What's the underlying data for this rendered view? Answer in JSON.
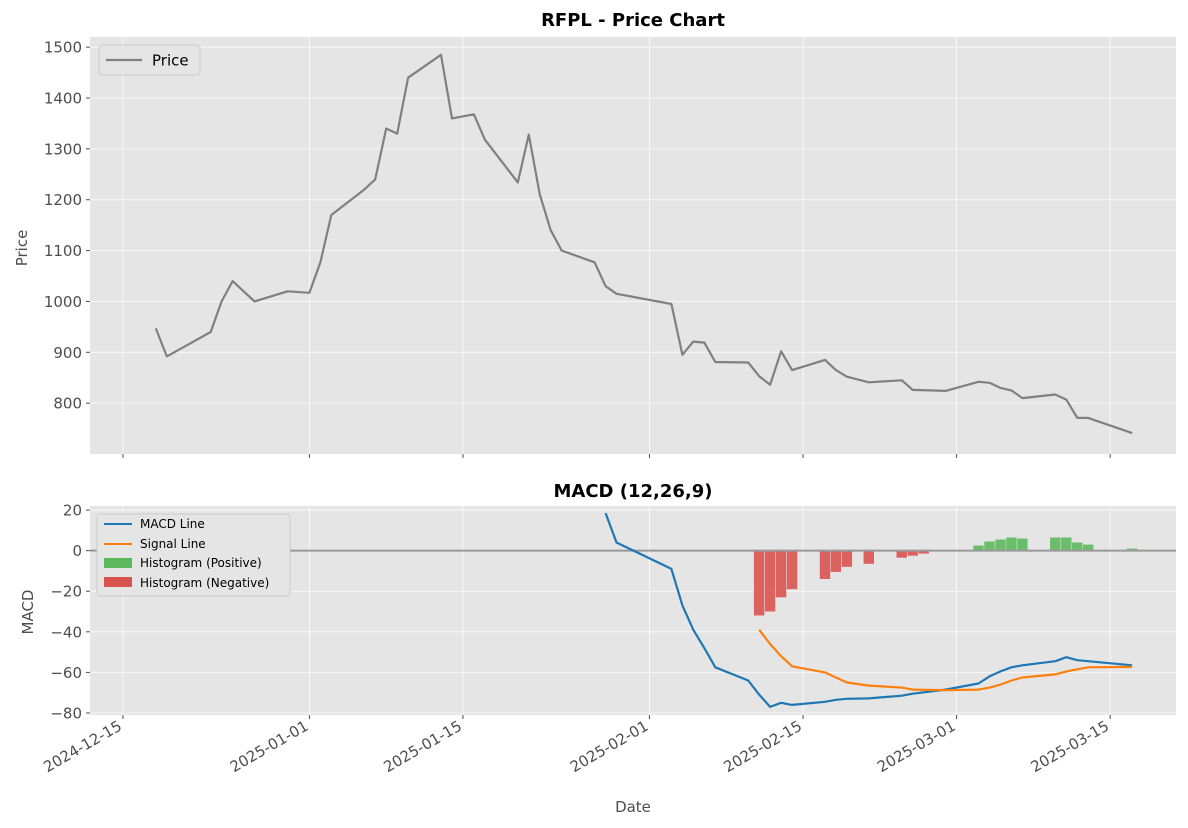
{
  "chart_data": [
    {
      "type": "line",
      "title": "RFPL - Price Chart",
      "xlabel": "",
      "ylabel": "Price",
      "xlim": [
        "2024-12-12",
        "2025-03-21"
      ],
      "ylim": [
        700,
        1520
      ],
      "yticks": [
        800,
        900,
        1000,
        1100,
        1200,
        1300,
        1400,
        1500
      ],
      "grid": true,
      "legend_position": "top-left",
      "series": [
        {
          "name": "Price",
          "color": "#808080",
          "points": [
            [
              "2024-12-18",
              947
            ],
            [
              "2024-12-19",
              892
            ],
            [
              "2024-12-23",
              940
            ],
            [
              "2024-12-24",
              1000
            ],
            [
              "2024-12-25",
              1040
            ],
            [
              "2024-12-27",
              1000
            ],
            [
              "2024-12-30",
              1020
            ],
            [
              "2025-01-01",
              1017
            ],
            [
              "2025-01-02",
              1077
            ],
            [
              "2025-01-03",
              1170
            ],
            [
              "2025-01-06",
              1220
            ],
            [
              "2025-01-07",
              1240
            ],
            [
              "2025-01-08",
              1340
            ],
            [
              "2025-01-09",
              1330
            ],
            [
              "2025-01-10",
              1440
            ],
            [
              "2025-01-13",
              1485
            ],
            [
              "2025-01-14",
              1360
            ],
            [
              "2025-01-16",
              1368
            ],
            [
              "2025-01-17",
              1318
            ],
            [
              "2025-01-20",
              1234
            ],
            [
              "2025-01-21",
              1328
            ],
            [
              "2025-01-22",
              1210
            ],
            [
              "2025-01-23",
              1140
            ],
            [
              "2025-01-24",
              1100
            ],
            [
              "2025-01-27",
              1077
            ],
            [
              "2025-01-28",
              1030
            ],
            [
              "2025-01-29",
              1015
            ],
            [
              "2025-02-03",
              995
            ],
            [
              "2025-02-04",
              895
            ],
            [
              "2025-02-05",
              921
            ],
            [
              "2025-02-06",
              919
            ],
            [
              "2025-02-07",
              881
            ],
            [
              "2025-02-10",
              880
            ],
            [
              "2025-02-11",
              853
            ],
            [
              "2025-02-12",
              836
            ],
            [
              "2025-02-13",
              902
            ],
            [
              "2025-02-14",
              865
            ],
            [
              "2025-02-17",
              885
            ],
            [
              "2025-02-18",
              865
            ],
            [
              "2025-02-19",
              852
            ],
            [
              "2025-02-21",
              841
            ],
            [
              "2025-02-24",
              845
            ],
            [
              "2025-02-25",
              826
            ],
            [
              "2025-02-28",
              824
            ],
            [
              "2025-03-03",
              842
            ],
            [
              "2025-03-04",
              840
            ],
            [
              "2025-03-05",
              830
            ],
            [
              "2025-03-06",
              825
            ],
            [
              "2025-03-07",
              810
            ],
            [
              "2025-03-10",
              817
            ],
            [
              "2025-03-11",
              807
            ],
            [
              "2025-03-12",
              771
            ],
            [
              "2025-03-13",
              771
            ],
            [
              "2025-03-17",
              741
            ]
          ]
        }
      ]
    },
    {
      "type": "line",
      "title": "MACD (12,26,9)",
      "xlabel": "Date",
      "ylabel": "MACD",
      "xlim": [
        "2024-12-12",
        "2025-03-21"
      ],
      "ylim": [
        -81,
        22
      ],
      "yticks": [
        -80,
        -60,
        -40,
        -20,
        0,
        20
      ],
      "xticks": [
        "2024-12-15",
        "2025-01-01",
        "2025-01-15",
        "2025-02-01",
        "2025-02-15",
        "2025-03-01",
        "2025-03-15"
      ],
      "grid": true,
      "zero_line": true,
      "legend_position": "top-left",
      "series": [
        {
          "name": "MACD Line",
          "color": "#1f77b4",
          "points": [
            [
              "2025-01-28",
              18.5
            ],
            [
              "2025-01-29",
              4
            ],
            [
              "2025-02-03",
              -9
            ],
            [
              "2025-02-04",
              -27
            ],
            [
              "2025-02-05",
              -39
            ],
            [
              "2025-02-06",
              -48
            ],
            [
              "2025-02-07",
              -57.5
            ],
            [
              "2025-02-10",
              -64
            ],
            [
              "2025-02-11",
              -71
            ],
            [
              "2025-02-12",
              -77
            ],
            [
              "2025-02-13",
              -75
            ],
            [
              "2025-02-14",
              -76
            ],
            [
              "2025-02-17",
              -74.5
            ],
            [
              "2025-02-18",
              -73.5
            ],
            [
              "2025-02-19",
              -73
            ],
            [
              "2025-02-21",
              -72.8
            ],
            [
              "2025-02-24",
              -71.5
            ],
            [
              "2025-02-25",
              -70.5
            ],
            [
              "2025-02-28",
              -68.5
            ],
            [
              "2025-03-03",
              -65.5
            ],
            [
              "2025-03-04",
              -62
            ],
            [
              "2025-03-05",
              -59.5
            ],
            [
              "2025-03-06",
              -57.5
            ],
            [
              "2025-03-07",
              -56.5
            ],
            [
              "2025-03-10",
              -54.5
            ],
            [
              "2025-03-11",
              -52.5
            ],
            [
              "2025-03-12",
              -54
            ],
            [
              "2025-03-13",
              -54.5
            ],
            [
              "2025-03-17",
              -56.5
            ]
          ]
        },
        {
          "name": "Signal Line",
          "color": "#ff7f0e",
          "points": [
            [
              "2025-02-11",
              -39
            ],
            [
              "2025-02-12",
              -46
            ],
            [
              "2025-02-13",
              -52
            ],
            [
              "2025-02-14",
              -57
            ],
            [
              "2025-02-17",
              -60
            ],
            [
              "2025-02-18",
              -62.5
            ],
            [
              "2025-02-19",
              -65
            ],
            [
              "2025-02-21",
              -66.5
            ],
            [
              "2025-02-24",
              -67.5
            ],
            [
              "2025-02-25",
              -68.5
            ],
            [
              "2025-02-28",
              -68.8
            ],
            [
              "2025-03-03",
              -68.5
            ],
            [
              "2025-03-04",
              -67.5
            ],
            [
              "2025-03-05",
              -66
            ],
            [
              "2025-03-06",
              -64
            ],
            [
              "2025-03-07",
              -62.5
            ],
            [
              "2025-03-10",
              -61
            ],
            [
              "2025-03-11",
              -59.5
            ],
            [
              "2025-03-12",
              -58.5
            ],
            [
              "2025-03-13",
              -57.5
            ],
            [
              "2025-03-17",
              -57.3
            ]
          ]
        }
      ],
      "histogram": {
        "positive": {
          "name": "Histogram (Positive)",
          "color": "#5cb85c"
        },
        "negative": {
          "name": "Histogram (Negative)",
          "color": "#d9534f"
        },
        "bars": [
          [
            "2025-02-11",
            -32
          ],
          [
            "2025-02-12",
            -30
          ],
          [
            "2025-02-13",
            -23
          ],
          [
            "2025-02-14",
            -19
          ],
          [
            "2025-02-17",
            -14
          ],
          [
            "2025-02-18",
            -10.5
          ],
          [
            "2025-02-19",
            -8
          ],
          [
            "2025-02-21",
            -6.5
          ],
          [
            "2025-02-24",
            -3.5
          ],
          [
            "2025-02-25",
            -2.5
          ],
          [
            "2025-02-26",
            -1.5
          ],
          [
            "2025-03-03",
            2.5
          ],
          [
            "2025-03-04",
            4.5
          ],
          [
            "2025-03-05",
            5.5
          ],
          [
            "2025-03-06",
            6.5
          ],
          [
            "2025-03-07",
            6
          ],
          [
            "2025-03-10",
            6.5
          ],
          [
            "2025-03-11",
            6.5
          ],
          [
            "2025-03-12",
            4
          ],
          [
            "2025-03-13",
            3
          ],
          [
            "2025-03-17",
            1
          ]
        ]
      }
    }
  ]
}
